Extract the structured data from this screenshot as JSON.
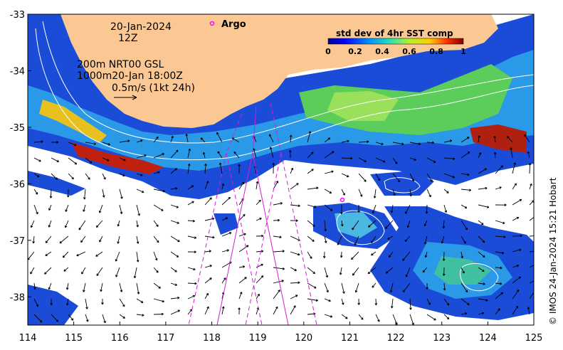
{
  "map": {
    "lon_range": [
      114,
      125
    ],
    "lat_range": [
      -38.5,
      -33
    ],
    "lon_ticks": [
      "114",
      "115",
      "116",
      "117",
      "118",
      "119",
      "120",
      "121",
      "122",
      "123",
      "124",
      "125"
    ],
    "lat_ticks": [
      "-33",
      "-34",
      "-35",
      "-36",
      "-37",
      "-38"
    ],
    "annotations": {
      "date": "20-Jan-2024",
      "hour": "12Z",
      "isobath_line": "200m  NRT00 GSL",
      "isobath_line2": "1000m20-Jan 18:00Z",
      "vector_scale": "0.5m/s (1kt 24h)"
    },
    "argo_label": "Argo",
    "colorbar": {
      "title": "std dev of 4hr SST comp",
      "ticks": [
        "0",
        "0.2",
        "0.4",
        "0.6",
        "0.8",
        "1"
      ],
      "range": [
        0,
        1
      ]
    },
    "credit": "© IMOS 24-Jan-2024 15:21 Hobart",
    "colors": {
      "land": "#fbc894",
      "argo": "#ff00ff",
      "tracks": "#d21fd2"
    }
  }
}
